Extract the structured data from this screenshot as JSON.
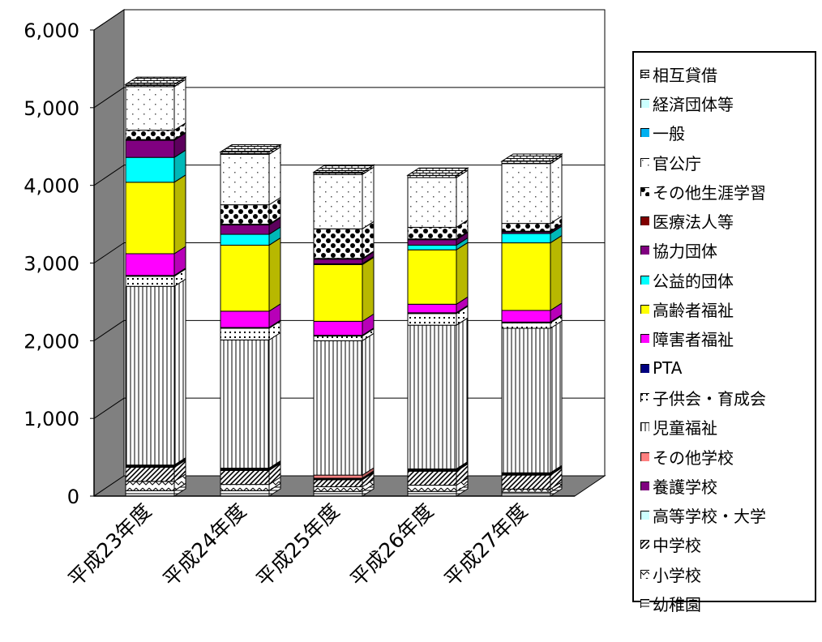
{
  "chart_data": {
    "type": "bar",
    "stacked": true,
    "style": "3d-column",
    "categories": [
      "平成23年度",
      "平成24年度",
      "平成25年度",
      "平成26年度",
      "平成27年度"
    ],
    "ylim": [
      0,
      6000
    ],
    "yticks": [
      "0",
      "1,000",
      "2,000",
      "3,000",
      "4,000",
      "5,000",
      "6,000"
    ],
    "grid": true,
    "legend_position": "right",
    "series": [
      {
        "name": "幼稚園",
        "color": "#ffffff",
        "pattern": "hlines",
        "values": [
          70,
          70,
          60,
          60,
          50
        ]
      },
      {
        "name": "小学校",
        "color": "#ffffff",
        "pattern": "zigzag",
        "values": [
          120,
          80,
          60,
          80,
          40
        ]
      },
      {
        "name": "中学校",
        "color": "#ffffff",
        "pattern": "diag",
        "values": [
          180,
          180,
          90,
          180,
          180
        ]
      },
      {
        "name": "高等学校・大学",
        "color": "#ccffff",
        "pattern": "solid",
        "values": [
          10,
          10,
          10,
          10,
          10
        ]
      },
      {
        "name": "養護学校",
        "color": "#800080",
        "pattern": "solid",
        "values": [
          10,
          10,
          10,
          10,
          10
        ]
      },
      {
        "name": "その他学校",
        "color": "#ff8080",
        "pattern": "solid",
        "values": [
          10,
          10,
          40,
          10,
          10
        ]
      },
      {
        "name": "児童福祉",
        "color": "#ffffff",
        "pattern": "vlines",
        "values": [
          2300,
          1650,
          1730,
          1850,
          1860
        ]
      },
      {
        "name": "子供会・育成会",
        "color": "#ffffff",
        "pattern": "dotgrid",
        "values": [
          130,
          150,
          60,
          150,
          70
        ]
      },
      {
        "name": "PTA",
        "color": "#000080",
        "pattern": "solid",
        "values": [
          10,
          10,
          10,
          10,
          10
        ]
      },
      {
        "name": "障害者福祉",
        "color": "#ff00ff",
        "pattern": "solid",
        "values": [
          280,
          210,
          180,
          110,
          150
        ]
      },
      {
        "name": "高齢者福祉",
        "color": "#ffff00",
        "pattern": "solid",
        "values": [
          920,
          850,
          730,
          700,
          870
        ]
      },
      {
        "name": "公益的団体",
        "color": "#00ffff",
        "pattern": "solid",
        "values": [
          320,
          140,
          10,
          60,
          120
        ]
      },
      {
        "name": "協力団体",
        "color": "#800080",
        "pattern": "solid",
        "values": [
          220,
          120,
          60,
          70,
          20
        ]
      },
      {
        "name": "医療法人等",
        "color": "#800000",
        "pattern": "solid",
        "values": [
          10,
          10,
          10,
          10,
          10
        ]
      },
      {
        "name": "その他生涯学習",
        "color": "#ffffff",
        "pattern": "checker",
        "values": [
          120,
          250,
          380,
          150,
          100
        ]
      },
      {
        "name": "官公庁",
        "color": "#ffffff",
        "pattern": "dots",
        "values": [
          560,
          650,
          700,
          640,
          770
        ]
      },
      {
        "name": "一般",
        "color": "#00b0f0",
        "pattern": "solid",
        "values": [
          0,
          0,
          0,
          0,
          0
        ]
      },
      {
        "name": "経済団体等",
        "color": "#ccffff",
        "pattern": "solid",
        "values": [
          0,
          0,
          0,
          0,
          0
        ]
      },
      {
        "name": "相互貸借",
        "color": "#ffffff",
        "pattern": "brick",
        "values": [
          30,
          30,
          30,
          30,
          30
        ]
      }
    ]
  }
}
